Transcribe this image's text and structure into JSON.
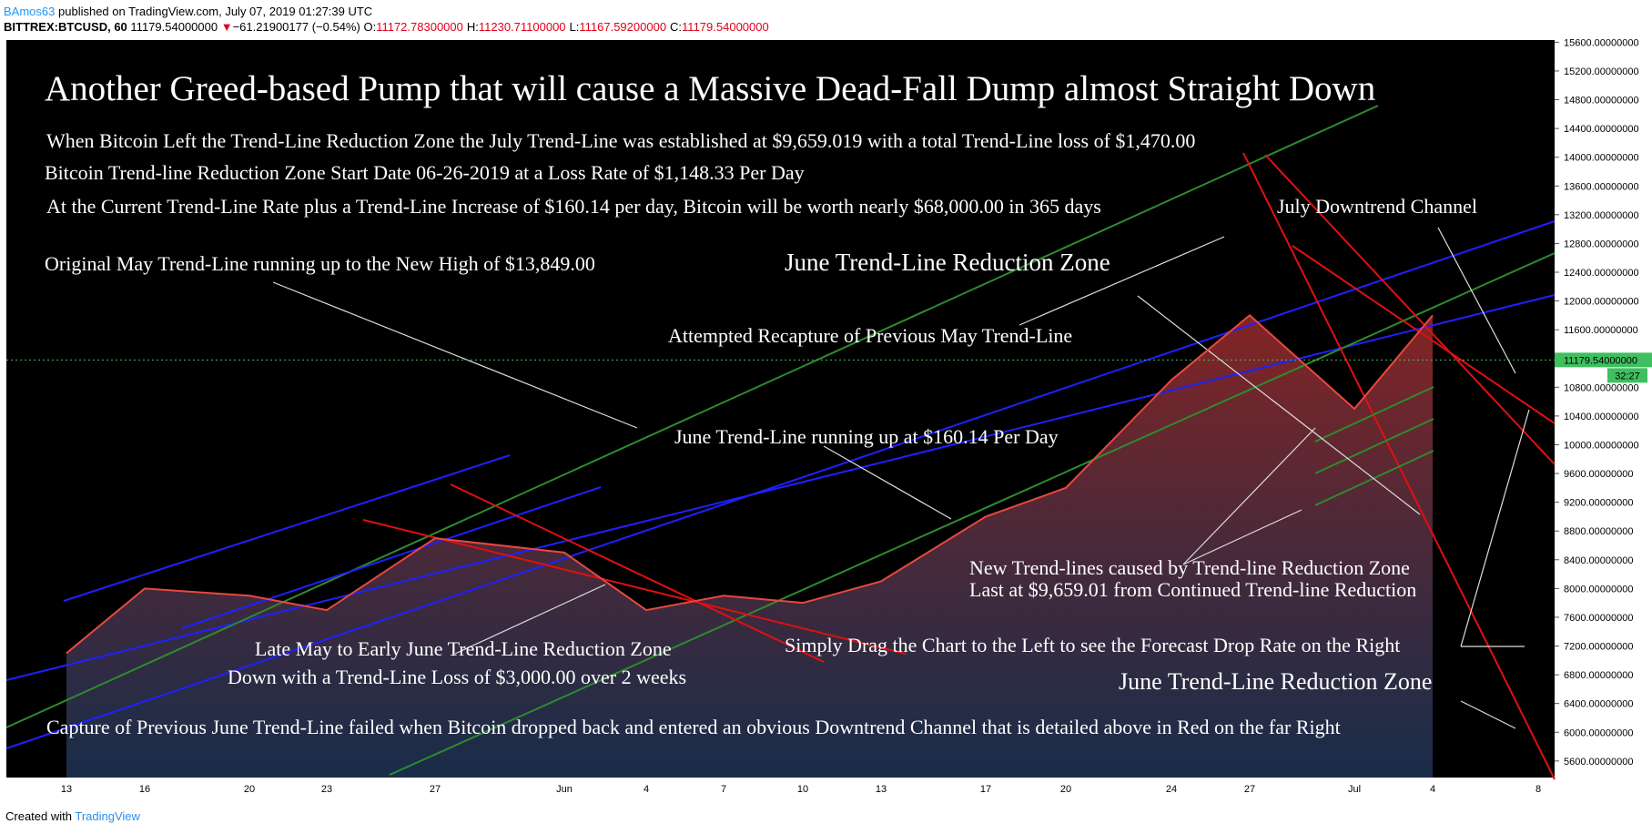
{
  "header": {
    "publisher": "BAmos63",
    "published": "published on TradingView.com, July 07, 2019 01:27:39 UTC",
    "symbol": "BITTREX:BTCUSD, 60",
    "price": "11179.54000000",
    "arrow": "▼",
    "change": "−61.21900177 (−0.54%)",
    "ohlc": [
      {
        "label": "O:",
        "value": "11172.78300000"
      },
      {
        "label": "H:",
        "value": "11230.71100000"
      },
      {
        "label": "L:",
        "value": "11167.59200000"
      },
      {
        "label": "C:",
        "value": "11179.54000000"
      }
    ]
  },
  "chart_data": {
    "type": "line",
    "color": "#e8483f",
    "categories": [
      "13",
      "16",
      "20",
      "23",
      "27",
      "Jun",
      "4",
      "7",
      "10",
      "13",
      "17",
      "20",
      "24",
      "27",
      "Jul",
      "4",
      "8"
    ],
    "values": [
      7100,
      8000,
      7900,
      7700,
      8700,
      8500,
      7700,
      7900,
      7800,
      8100,
      9000,
      9400,
      10900,
      11800,
      10500,
      11800,
      null
    ],
    "ylim": [
      5370,
      15630
    ],
    "yticks": [
      {
        "value": 15600,
        "label": "15600.00000000"
      },
      {
        "value": 15200,
        "label": "15200.00000000"
      },
      {
        "value": 14800,
        "label": "14800.00000000"
      },
      {
        "value": 14400,
        "label": "14400.00000000"
      },
      {
        "value": 14000,
        "label": "14000.00000000"
      },
      {
        "value": 13600,
        "label": "13600.00000000"
      },
      {
        "value": 13200,
        "label": "13200.00000000"
      },
      {
        "value": 12800,
        "label": "12800.00000000"
      },
      {
        "value": 12400,
        "label": "12400.00000000"
      },
      {
        "value": 12000,
        "label": "12000.00000000"
      },
      {
        "value": 11600,
        "label": "11600.00000000"
      },
      {
        "value": 11200,
        "label": "11200.00000000"
      },
      {
        "value": 10800,
        "label": "10800.00000000"
      },
      {
        "value": 10400,
        "label": "10400.00000000"
      },
      {
        "value": 10000,
        "label": "10000.00000000"
      },
      {
        "value": 9600,
        "label": "9600.00000000"
      },
      {
        "value": 9200,
        "label": "9200.00000000"
      },
      {
        "value": 8800,
        "label": "8800.00000000"
      },
      {
        "value": 8400,
        "label": "8400.00000000"
      },
      {
        "value": 8000,
        "label": "8000.00000000"
      },
      {
        "value": 7600,
        "label": "7600.00000000"
      },
      {
        "value": 7200,
        "label": "7200.00000000"
      },
      {
        "value": 6800,
        "label": "6800.00000000"
      },
      {
        "value": 6400,
        "label": "6400.00000000"
      },
      {
        "value": 6000,
        "label": "6000.00000000"
      },
      {
        "value": 5600,
        "label": "5600.00000000"
      }
    ],
    "last_price": {
      "value": 11179.54,
      "label": "11179.54000000"
    },
    "countdown": "32:27",
    "annotations": [
      "Another Greed-based Pump that will cause a Massive Dead-Fall Dump almost Straight Down",
      "When Bitcoin Left the Trend-Line Reduction Zone the July Trend-Line was established at $9,659.019 with a total Trend-Line loss of $1,470.00",
      "Bitcoin Trend-line Reduction Zone Start Date 06-26-2019 at a Loss Rate of $1,148.33 Per Day",
      "At the Current Trend-Line Rate plus a Trend-Line Increase of $160.14 per day, Bitcoin will be worth nearly $68,000.00 in 365 days",
      "Original May Trend-Line running up to the New High of $13,849.00",
      "June Trend-Line Reduction Zone",
      "July Downtrend Channel",
      "Attempted Recapture of Previous May Trend-Line",
      "June Trend-Line running up at $160.14 Per Day",
      "New Trend-lines caused by Trend-line Reduction Zone",
      "Last at $9,659.01 from Continued Trend-line Reduction",
      "Late May to Early June Trend-Line Reduction Zone",
      "Down with a Trend-Line Loss of $3,000.00 over 2 weeks",
      "Simply Drag the Chart to the Left to see the Forecast Drop Rate on the Right",
      "June Trend-Line Reduction Zone",
      "Capture of Previous June Trend-Line failed when Bitcoin dropped back and entered an obvious Downtrend Channel that is detailed above in Red on the far Right"
    ]
  },
  "footer": {
    "created": "Created with",
    "brand": "TradingView"
  }
}
